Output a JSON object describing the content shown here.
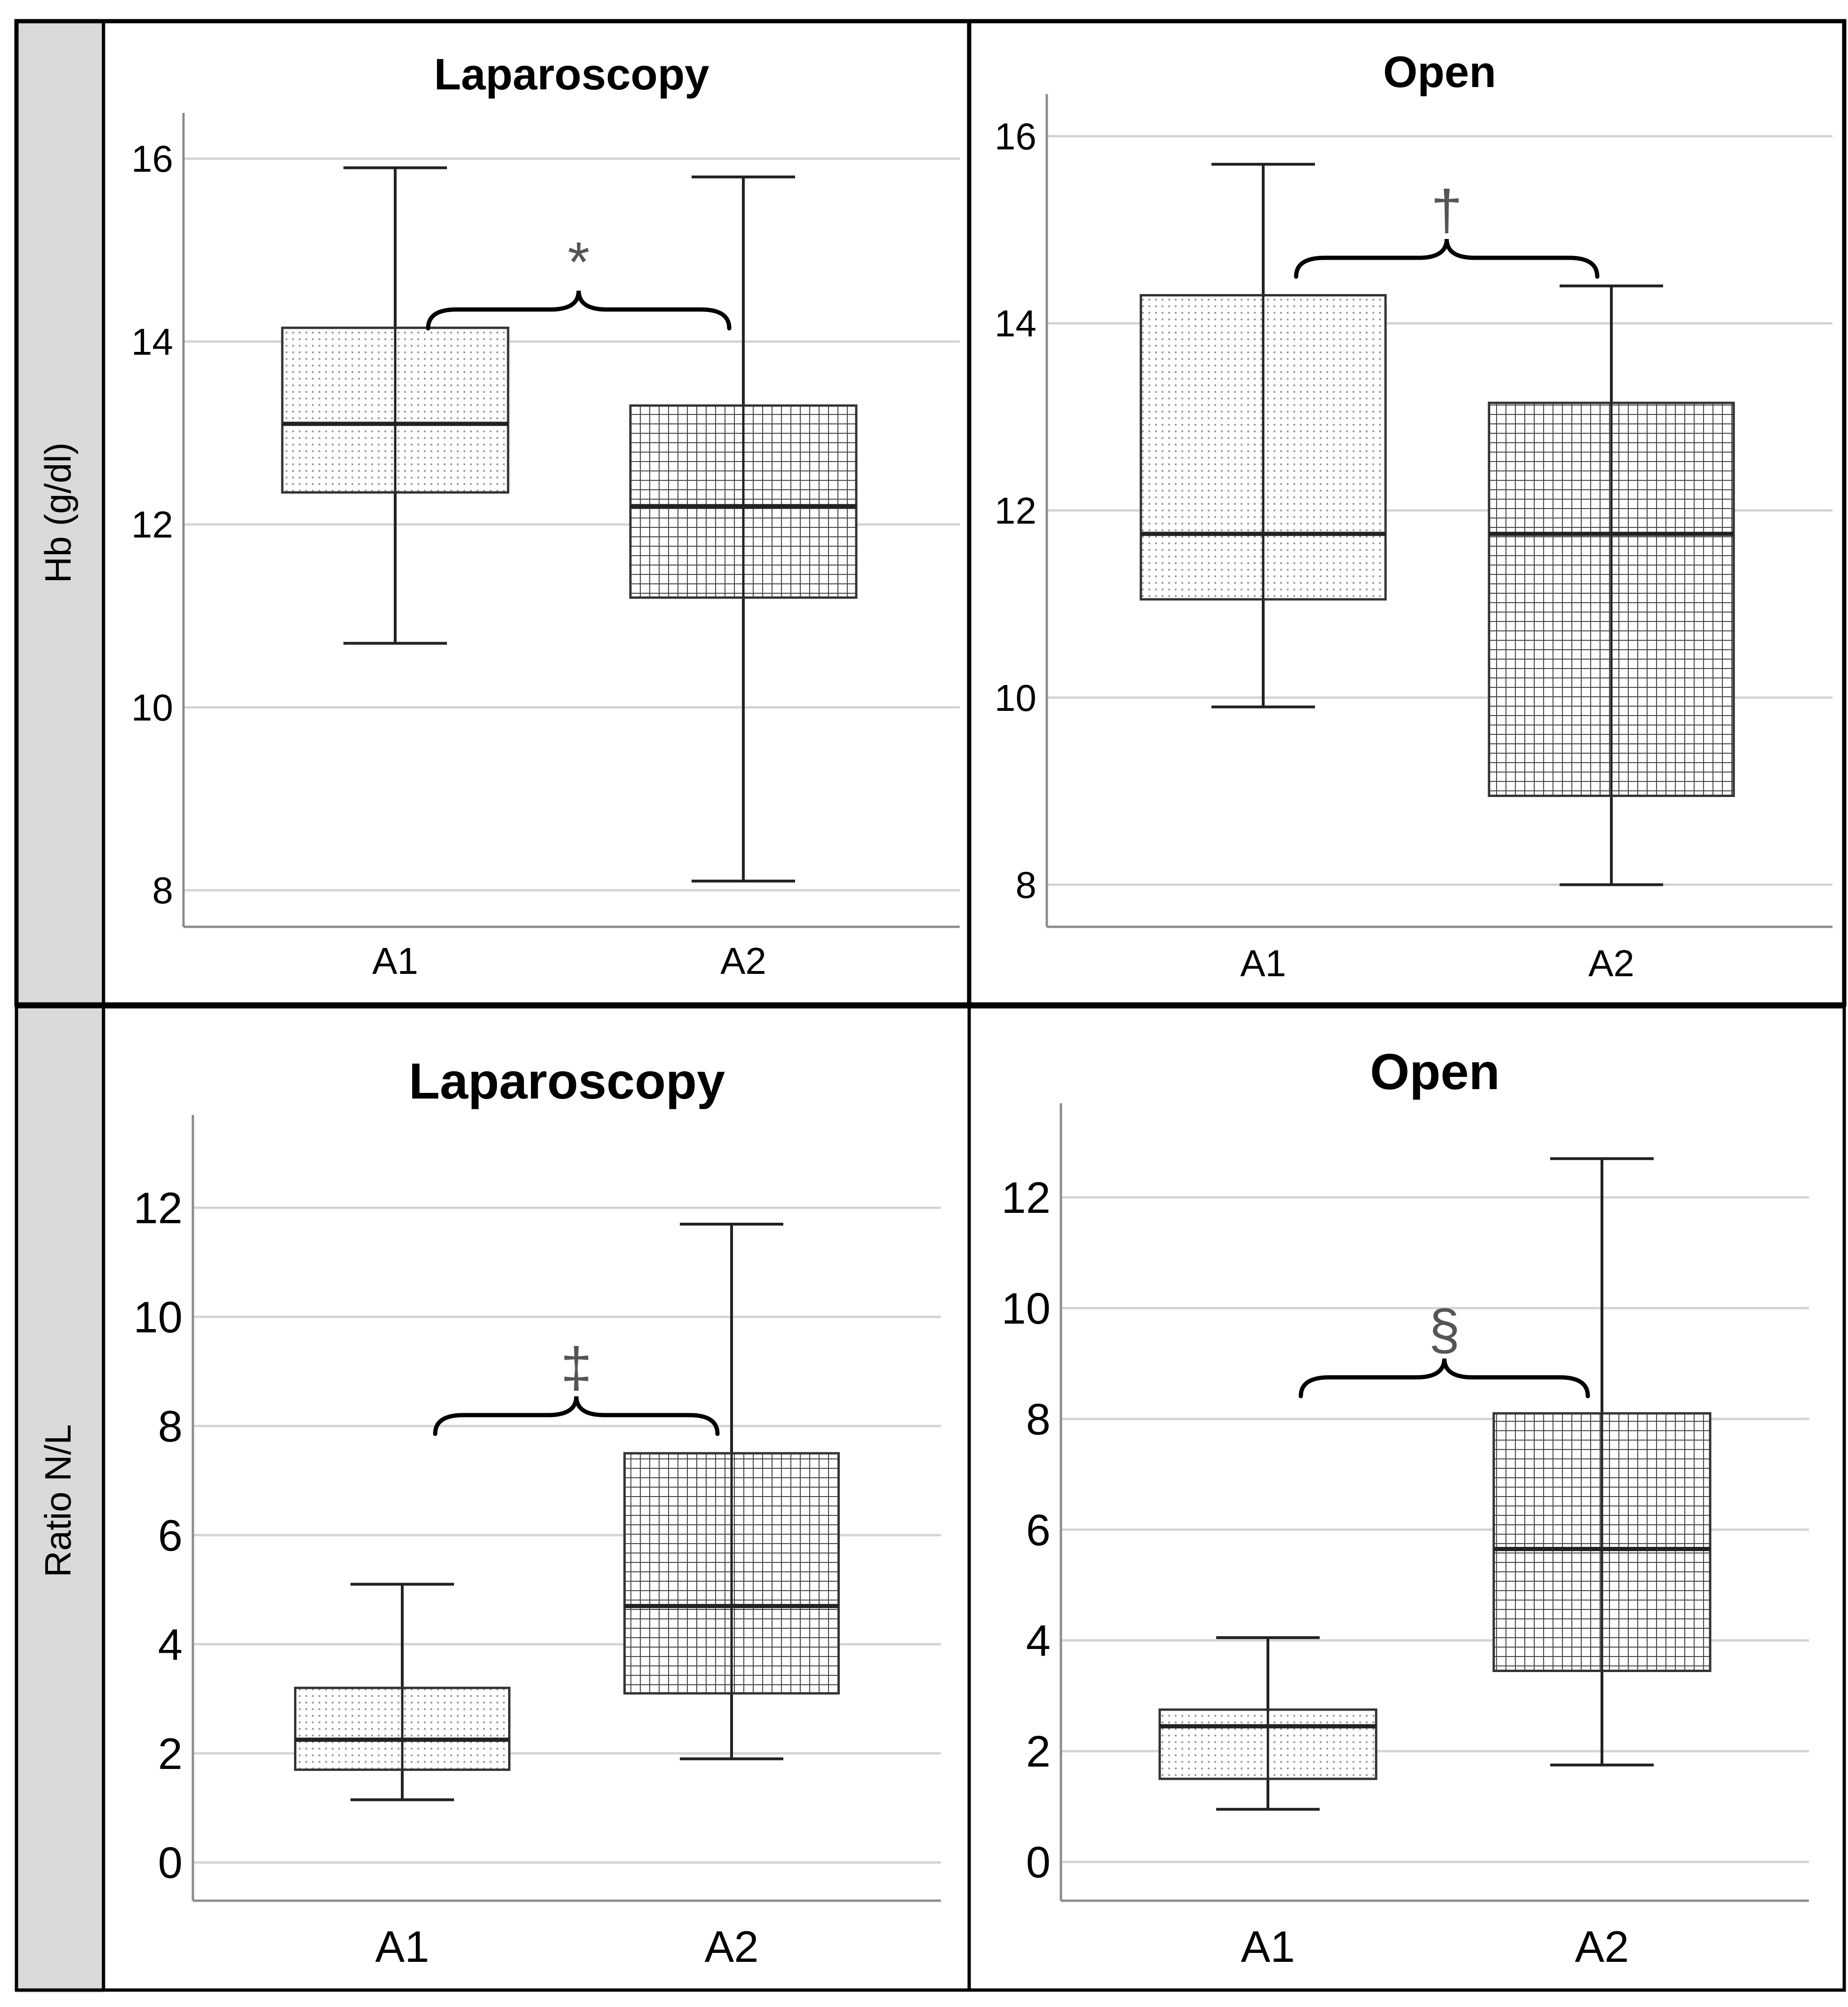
{
  "rows": [
    {
      "label": "Hb (g/dl)"
    },
    {
      "label": "Ratio N/L"
    }
  ],
  "colors": {
    "frame": "#000000",
    "row_label_bg": "#d9d9d9",
    "grid": "#d4d4d4",
    "axis": "#8c8c8c",
    "box_stroke": "#333333",
    "whisker": "#222222",
    "dot_pattern": "#9a9a9a",
    "grid_pattern": "#444444",
    "annotation": "#555555"
  },
  "chart_data": [
    {
      "type": "box",
      "title": "Laparoscopy",
      "ylabel": "Hb (g/dl)",
      "xlabel": "",
      "ylim": [
        7.6,
        16.5
      ],
      "yticks": [
        "8",
        "10",
        "12",
        "14",
        "16"
      ],
      "categories": [
        "A1",
        "A2"
      ],
      "boxes": [
        {
          "category": "A1",
          "min": 10.7,
          "q1": 12.35,
          "median": 13.1,
          "q3": 14.15,
          "max": 15.9,
          "pattern": "dots"
        },
        {
          "category": "A2",
          "min": 8.1,
          "q1": 11.2,
          "median": 12.2,
          "q3": 13.3,
          "max": 15.8,
          "pattern": "grid"
        }
      ],
      "bracket": {
        "from": "A1",
        "to": "A2",
        "y": 14.35,
        "symbol": "*"
      },
      "grid": true
    },
    {
      "type": "box",
      "title": "Open",
      "ylabel": "Hb (g/dl)",
      "xlabel": "",
      "ylim": [
        7.55,
        16.45
      ],
      "yticks": [
        "8",
        "10",
        "12",
        "14",
        "16"
      ],
      "categories": [
        "A1",
        "A2"
      ],
      "boxes": [
        {
          "category": "A1",
          "min": 9.9,
          "q1": 11.05,
          "median": 11.75,
          "q3": 14.3,
          "max": 15.7,
          "pattern": "dots"
        },
        {
          "category": "A2",
          "min": 8.0,
          "q1": 8.95,
          "median": 11.75,
          "q3": 13.15,
          "max": 14.4,
          "pattern": "grid"
        }
      ],
      "bracket": {
        "from": "A1",
        "to": "A2",
        "y": 14.7,
        "symbol": "†"
      },
      "grid": true
    },
    {
      "type": "box",
      "title": "Laparoscopy",
      "ylabel": "Ratio N/L",
      "xlabel": "",
      "ylim": [
        -0.7,
        13.7
      ],
      "yticks": [
        "0",
        "2",
        "4",
        "6",
        "8",
        "10",
        "12"
      ],
      "categories": [
        "A1",
        "A2"
      ],
      "boxes": [
        {
          "category": "A1",
          "min": 1.15,
          "q1": 1.7,
          "median": 2.25,
          "q3": 3.2,
          "max": 5.1,
          "pattern": "dots"
        },
        {
          "category": "A2",
          "min": 1.9,
          "q1": 3.1,
          "median": 4.7,
          "q3": 7.5,
          "max": 11.7,
          "pattern": "grid"
        }
      ],
      "bracket": {
        "from": "A1",
        "to": "A2",
        "y": 8.2,
        "symbol": "‡"
      },
      "grid": true
    },
    {
      "type": "box",
      "title": "Open",
      "ylabel": "Ratio N/L",
      "xlabel": "",
      "ylim": [
        -0.7,
        13.7
      ],
      "yticks": [
        "0",
        "2",
        "4",
        "6",
        "8",
        "10",
        "12"
      ],
      "categories": [
        "A1",
        "A2"
      ],
      "boxes": [
        {
          "category": "A1",
          "min": 0.95,
          "q1": 1.5,
          "median": 2.45,
          "q3": 2.75,
          "max": 4.05,
          "pattern": "dots"
        },
        {
          "category": "A2",
          "min": 1.75,
          "q1": 3.45,
          "median": 5.65,
          "q3": 8.1,
          "max": 12.7,
          "pattern": "grid"
        }
      ],
      "bracket": {
        "from": "A1",
        "to": "A2",
        "y": 8.75,
        "symbol": "§"
      },
      "grid": true
    }
  ]
}
